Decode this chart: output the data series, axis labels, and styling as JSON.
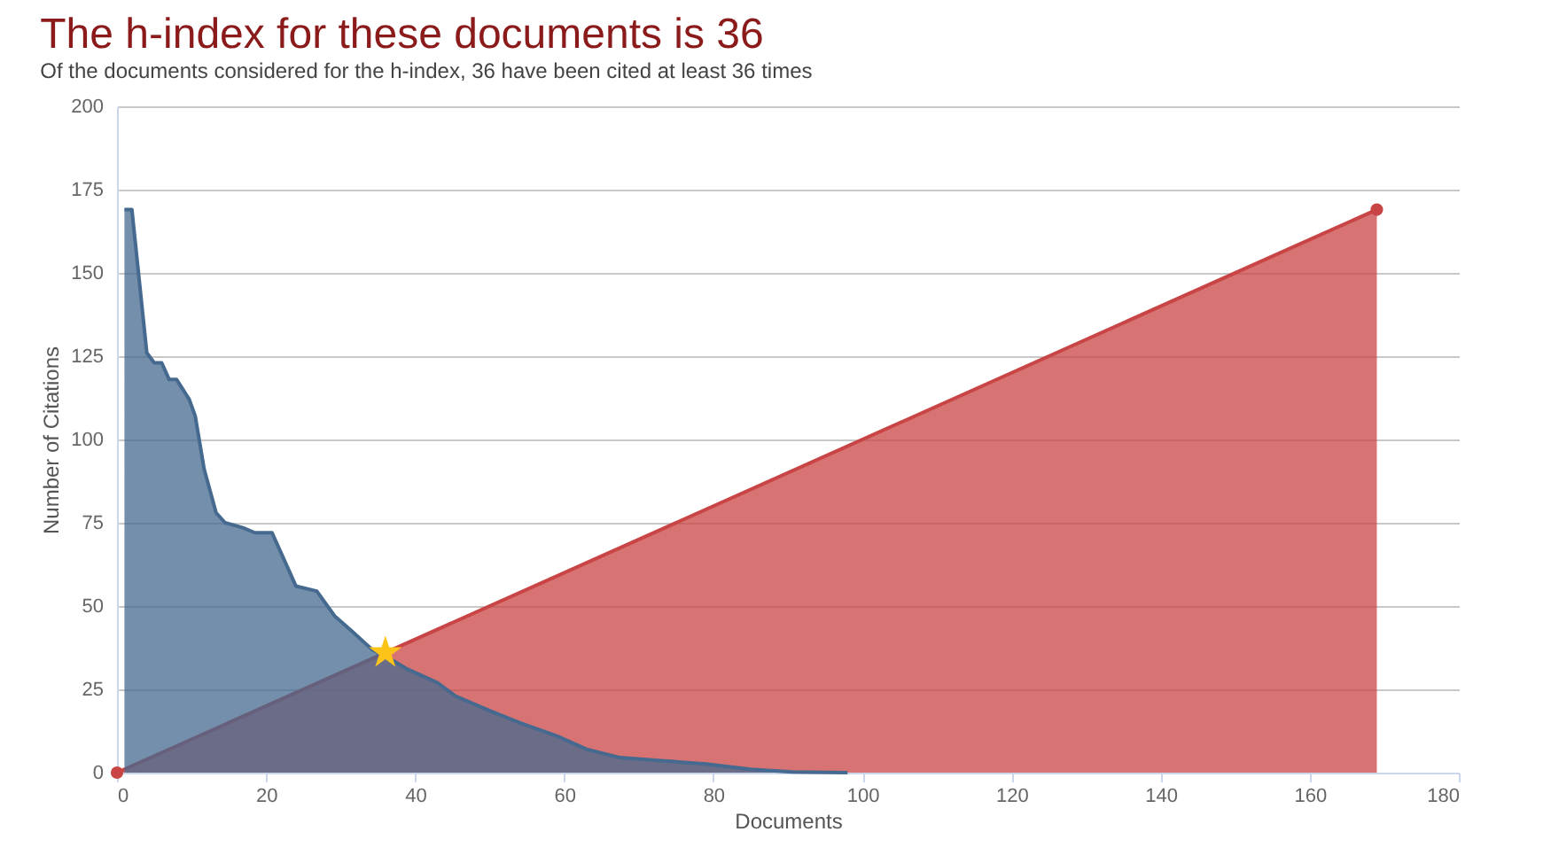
{
  "chart_data": {
    "type": "area",
    "title": "The h-index for these documents is 36",
    "subtitle": "Of the documents considered for the h-index, 36 have been cited at least 36 times",
    "xlabel": "Documents",
    "ylabel": "Number of Citations",
    "xlim": [
      0,
      180
    ],
    "xticks": [
      0,
      20,
      40,
      60,
      80,
      100,
      120,
      140,
      160,
      180
    ],
    "ylim": [
      0,
      200
    ],
    "yticks": [
      0,
      25,
      50,
      75,
      100,
      125,
      150,
      175,
      200
    ],
    "grid": "y",
    "series": [
      {
        "color": "#c94444",
        "marker": "circle",
        "x": [
          0,
          169
        ],
        "values": [
          0,
          169
        ]
      },
      {
        "color": "#45698f",
        "x": [
          1,
          2,
          4,
          5,
          6,
          7,
          8,
          9.7,
          10.5,
          11.7,
          13.3,
          14.5,
          16.9,
          18.5,
          20.8,
          22.4,
          24,
          26.8,
          29.2,
          31.5,
          34.2,
          36,
          39,
          43,
          45.4,
          50,
          54,
          59,
          63,
          67.5,
          73,
          79,
          85,
          90.6,
          98
        ],
        "values": [
          169,
          169,
          126,
          123,
          123,
          118,
          118,
          112,
          107,
          91,
          78,
          75,
          73.5,
          72,
          72,
          64,
          56,
          54.5,
          47,
          42.5,
          37,
          35,
          31,
          27,
          23,
          18.6,
          15,
          11,
          7,
          4.5,
          3.6,
          2.6,
          1,
          0.2,
          0
        ]
      },
      {
        "type": "scatter",
        "marker": "star",
        "color": "#fcc419",
        "x": [
          36
        ],
        "values": [
          36
        ]
      }
    ]
  }
}
